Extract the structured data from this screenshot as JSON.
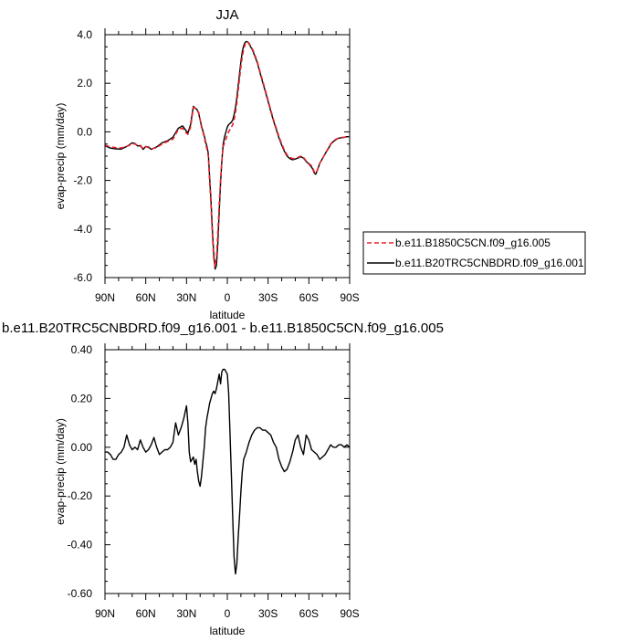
{
  "chart_data": [
    {
      "type": "line",
      "title": "JJA",
      "xlabel": "latitude",
      "ylabel": "evap-precip (mm/day)",
      "xlim": [
        90,
        -90
      ],
      "ylim": [
        -6,
        4
      ],
      "xticks": [
        90,
        60,
        30,
        0,
        -30,
        -60,
        -90
      ],
      "xtick_labels": [
        "90N",
        "60N",
        "30N",
        "0",
        "30S",
        "60S",
        "90S"
      ],
      "yticks": [
        4,
        2,
        0,
        -2,
        -4,
        -6
      ],
      "ytick_labels": [
        "4.0",
        "2.0",
        "0.0",
        "-2.0",
        "-4.0",
        "-6.0"
      ],
      "legend": "right",
      "series": [
        {
          "name": "b.e11.B1850C5CN.f09_g16.005",
          "color": "#e8202a",
          "dash": "dashed",
          "x": [
            90,
            86,
            82,
            78,
            74,
            70,
            68,
            66,
            64,
            62,
            60,
            58,
            56,
            52,
            48,
            44,
            40,
            36,
            33,
            31,
            29,
            27,
            26,
            25,
            24,
            23,
            22,
            21,
            20,
            19,
            18,
            17,
            16,
            15,
            14,
            13,
            12,
            11,
            10,
            9,
            8,
            7,
            6,
            5,
            4,
            3,
            2,
            1,
            0,
            -1,
            -2,
            -3,
            -4,
            -5,
            -6,
            -7,
            -8,
            -9,
            -10,
            -11,
            -12,
            -13,
            -14,
            -15,
            -16,
            -17,
            -18,
            -19,
            -20,
            -22,
            -24,
            -26,
            -28,
            -30,
            -32,
            -34,
            -36,
            -38,
            -40,
            -42,
            -44,
            -46,
            -48,
            -50,
            -52,
            -54,
            -56,
            -58,
            -60,
            -62,
            -63,
            -64,
            -65,
            -66,
            -67,
            -68,
            -70,
            -72,
            -74,
            -76,
            -78,
            -80,
            -82,
            -84,
            -86,
            -88,
            -90
          ],
          "y": [
            -0.55,
            -0.62,
            -0.65,
            -0.66,
            -0.6,
            -0.5,
            -0.5,
            -0.55,
            -0.55,
            -0.7,
            -0.6,
            -0.65,
            -0.7,
            -0.65,
            -0.5,
            -0.4,
            -0.3,
            0.1,
            0.15,
            0.0,
            -0.1,
            0.2,
            0.6,
            1.0,
            1.0,
            0.9,
            0.85,
            0.8,
            0.5,
            0.2,
            0.0,
            -0.2,
            -0.5,
            -0.7,
            -1.0,
            -2.0,
            -3.0,
            -4.2,
            -5.2,
            -5.55,
            -5.2,
            -4.2,
            -3.0,
            -2.0,
            -1.2,
            -0.6,
            -0.45,
            -0.3,
            -0.1,
            0.0,
            0.1,
            0.2,
            0.3,
            0.5,
            0.8,
            1.2,
            1.7,
            2.2,
            2.7,
            3.1,
            3.4,
            3.6,
            3.68,
            3.7,
            3.65,
            3.55,
            3.45,
            3.35,
            3.2,
            2.9,
            2.5,
            2.1,
            1.7,
            1.3,
            0.9,
            0.5,
            0.15,
            -0.2,
            -0.5,
            -0.75,
            -0.95,
            -1.05,
            -1.1,
            -1.1,
            -1.05,
            -1.0,
            -1.05,
            -1.2,
            -1.3,
            -1.4,
            -1.5,
            -1.65,
            -1.7,
            -1.6,
            -1.45,
            -1.3,
            -1.1,
            -0.9,
            -0.7,
            -0.5,
            -0.38,
            -0.3,
            -0.25,
            -0.23,
            -0.22,
            -0.2,
            -0.2
          ]
        },
        {
          "name": "b.e11.B20TRC5CNBDRD.f09_g16.001",
          "color": "#000000",
          "dash": "solid",
          "x": [
            90,
            86,
            82,
            78,
            74,
            70,
            68,
            66,
            64,
            62,
            60,
            58,
            56,
            52,
            48,
            44,
            40,
            36,
            33,
            31,
            29,
            27,
            26,
            25,
            24,
            23,
            22,
            21,
            20,
            19,
            18,
            17,
            16,
            15,
            14,
            13,
            12,
            11,
            10,
            9,
            8,
            7,
            6,
            5,
            4,
            3,
            2,
            1,
            0,
            -1,
            -2,
            -3,
            -4,
            -5,
            -6,
            -7,
            -8,
            -9,
            -10,
            -11,
            -12,
            -13,
            -14,
            -15,
            -16,
            -17,
            -18,
            -19,
            -20,
            -22,
            -24,
            -26,
            -28,
            -30,
            -32,
            -34,
            -36,
            -38,
            -40,
            -42,
            -44,
            -46,
            -48,
            -50,
            -52,
            -54,
            -56,
            -58,
            -60,
            -62,
            -63,
            -64,
            -65,
            -66,
            -67,
            -68,
            -70,
            -72,
            -74,
            -76,
            -78,
            -80,
            -82,
            -84,
            -86,
            -88,
            -90
          ],
          "y": [
            -0.57,
            -0.67,
            -0.7,
            -0.71,
            -0.6,
            -0.45,
            -0.48,
            -0.58,
            -0.57,
            -0.72,
            -0.6,
            -0.62,
            -0.72,
            -0.62,
            -0.45,
            -0.37,
            -0.22,
            0.15,
            0.25,
            0.1,
            -0.05,
            0.3,
            0.7,
            1.05,
            1.0,
            0.95,
            0.9,
            0.75,
            0.5,
            0.25,
            0.05,
            -0.15,
            -0.4,
            -0.6,
            -0.9,
            -1.85,
            -2.8,
            -4.0,
            -5.0,
            -5.65,
            -5.5,
            -4.6,
            -3.3,
            -2.1,
            -1.2,
            -0.5,
            -0.2,
            0.0,
            0.2,
            0.3,
            0.35,
            0.4,
            0.5,
            0.7,
            1.0,
            1.4,
            1.9,
            2.4,
            2.9,
            3.3,
            3.55,
            3.68,
            3.72,
            3.7,
            3.62,
            3.52,
            3.42,
            3.3,
            3.15,
            2.85,
            2.45,
            2.05,
            1.65,
            1.25,
            0.85,
            0.45,
            0.1,
            -0.25,
            -0.55,
            -0.8,
            -1.0,
            -1.1,
            -1.15,
            -1.12,
            -1.08,
            -1.02,
            -1.08,
            -1.22,
            -1.32,
            -1.45,
            -1.55,
            -1.7,
            -1.75,
            -1.62,
            -1.45,
            -1.3,
            -1.1,
            -0.9,
            -0.72,
            -0.52,
            -0.4,
            -0.32,
            -0.26,
            -0.24,
            -0.23,
            -0.2,
            -0.2
          ]
        }
      ]
    },
    {
      "type": "line",
      "title": "b.e11.B20TRC5CNBDRD.f09_g16.001 - b.e11.B1850C5CN.f09_g16.005",
      "xlabel": "latitude",
      "ylabel": "evap-precip (mm/day)",
      "xlim": [
        90,
        -90
      ],
      "ylim": [
        -0.6,
        0.4
      ],
      "xticks": [
        90,
        60,
        30,
        0,
        -30,
        -60,
        -90
      ],
      "xtick_labels": [
        "90N",
        "60N",
        "30N",
        "0",
        "30S",
        "60S",
        "90S"
      ],
      "yticks": [
        0.4,
        0.2,
        0,
        -0.2,
        -0.4,
        -0.6
      ],
      "ytick_labels": [
        "0.40",
        "0.20",
        "0.00",
        "-0.20",
        "-0.40",
        "-0.60"
      ],
      "series": [
        {
          "color": "#000000",
          "dash": "solid",
          "x": [
            90,
            88,
            86,
            84,
            82,
            80,
            78,
            76,
            74,
            72,
            70,
            68,
            66,
            64,
            62,
            60,
            58,
            56,
            54,
            52,
            50,
            48,
            46,
            44,
            42,
            40,
            38,
            36,
            34,
            32,
            30,
            29,
            28,
            27,
            26,
            25,
            24,
            23,
            22,
            21,
            20,
            19,
            18,
            17,
            16,
            15,
            14,
            13,
            12,
            11,
            10,
            9,
            8,
            7,
            6,
            5,
            4,
            3,
            2,
            1,
            0,
            -1,
            -2,
            -3,
            -4,
            -5,
            -6,
            -7,
            -8,
            -9,
            -10,
            -11,
            -12,
            -14,
            -16,
            -18,
            -20,
            -22,
            -24,
            -26,
            -28,
            -30,
            -32,
            -34,
            -36,
            -38,
            -40,
            -42,
            -44,
            -46,
            -48,
            -50,
            -52,
            -54,
            -56,
            -58,
            -60,
            -62,
            -64,
            -66,
            -68,
            -70,
            -72,
            -74,
            -76,
            -78,
            -80,
            -82,
            -84,
            -86,
            -88,
            -90
          ],
          "y": [
            -0.02,
            -0.02,
            -0.03,
            -0.05,
            -0.05,
            -0.03,
            -0.02,
            0.0,
            0.05,
            0.01,
            -0.01,
            0.0,
            -0.01,
            0.03,
            0.0,
            -0.02,
            -0.01,
            0.01,
            0.04,
            0.0,
            -0.03,
            -0.02,
            -0.01,
            -0.01,
            0.0,
            0.02,
            0.1,
            0.05,
            0.08,
            0.12,
            0.17,
            0.1,
            -0.02,
            -0.06,
            -0.05,
            -0.04,
            -0.07,
            -0.05,
            -0.1,
            -0.14,
            -0.16,
            -0.12,
            -0.06,
            0.0,
            0.08,
            0.12,
            0.15,
            0.18,
            0.2,
            0.22,
            0.23,
            0.22,
            0.24,
            0.27,
            0.3,
            0.26,
            0.31,
            0.32,
            0.32,
            0.31,
            0.3,
            0.22,
            0.05,
            -0.12,
            -0.3,
            -0.45,
            -0.52,
            -0.48,
            -0.37,
            -0.28,
            -0.18,
            -0.1,
            -0.05,
            -0.02,
            0.02,
            0.05,
            0.07,
            0.08,
            0.08,
            0.07,
            0.07,
            0.06,
            0.05,
            0.02,
            0.0,
            -0.05,
            -0.08,
            -0.1,
            -0.09,
            -0.06,
            -0.02,
            0.03,
            0.05,
            0.0,
            -0.03,
            0.05,
            0.03,
            -0.01,
            -0.02,
            -0.03,
            -0.05,
            -0.04,
            -0.03,
            -0.01,
            0.01,
            0.0,
            0.0,
            0.01,
            0.01,
            0.0,
            0.01,
            0.0
          ]
        }
      ]
    }
  ]
}
